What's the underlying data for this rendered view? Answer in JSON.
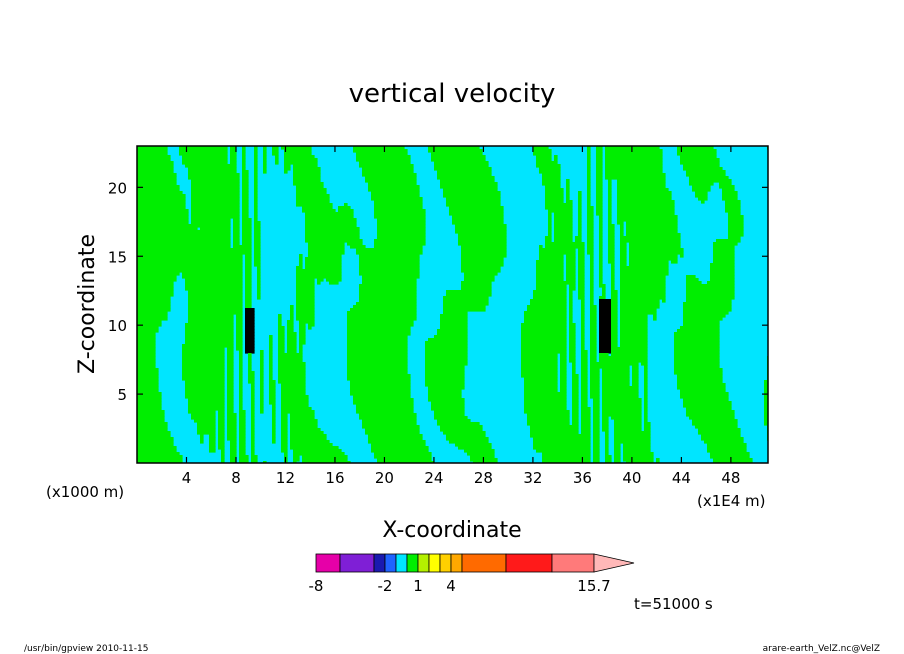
{
  "chart_data": {
    "type": "heatmap",
    "title": "vertical velocity",
    "xlabel": "X-coordinate",
    "ylabel": "Z-coordinate",
    "x_unit_left": "(x1000 m)",
    "x_unit_right": "(x1E4 m)",
    "xlim": [
      0,
      51
    ],
    "ylim": [
      0,
      23
    ],
    "x_ticks": [
      4,
      8,
      12,
      16,
      20,
      24,
      28,
      32,
      36,
      40,
      44,
      48
    ],
    "y_ticks": [
      5,
      10,
      15,
      20
    ],
    "grid": false,
    "fill_colors": {
      "negative": "#00e5ff",
      "positive": "#00ee00",
      "strong_positive": "#000000"
    },
    "colorbar": {
      "bins": [
        {
          "color": "#e600a8"
        },
        {
          "color": "#7f1fd6"
        },
        {
          "color": "#1a1ab0"
        },
        {
          "color": "#1f63ff"
        },
        {
          "color": "#00e5ff"
        },
        {
          "color": "#00ee00"
        },
        {
          "color": "#b4f000"
        },
        {
          "color": "#ffff00"
        },
        {
          "color": "#ffd000"
        },
        {
          "color": "#ffa800"
        },
        {
          "color": "#ff6a00"
        },
        {
          "color": "#ff1a1a"
        },
        {
          "color": "#ff7a7a"
        },
        {
          "color": "#ffb8b8"
        }
      ],
      "labels": [
        "-8",
        "-2",
        "1",
        "4",
        "15.7"
      ]
    },
    "time_label": "t=51000 s"
  },
  "footer": {
    "left": "/usr/bin/gpview   2010-11-15",
    "right": "arare-earth_VelZ.nc@VelZ"
  }
}
